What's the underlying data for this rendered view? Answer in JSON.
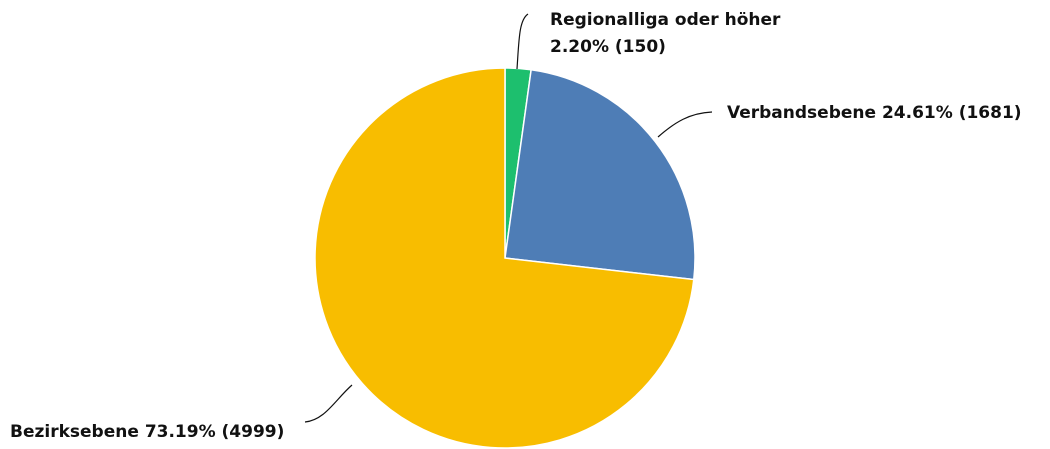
{
  "chart_data": {
    "type": "pie",
    "categories": [
      "Regionalliga oder höher",
      "Verbandsebene",
      "Bezirksebene"
    ],
    "values": [
      150,
      1681,
      4999
    ],
    "percentages": [
      2.2,
      24.61,
      73.19
    ],
    "value_labels": [
      "2.20% (150)",
      "24.61% (1681)",
      "73.19% (4999)"
    ],
    "colors": [
      "#1dbf6e",
      "#4e7db6",
      "#f8bd00"
    ]
  }
}
